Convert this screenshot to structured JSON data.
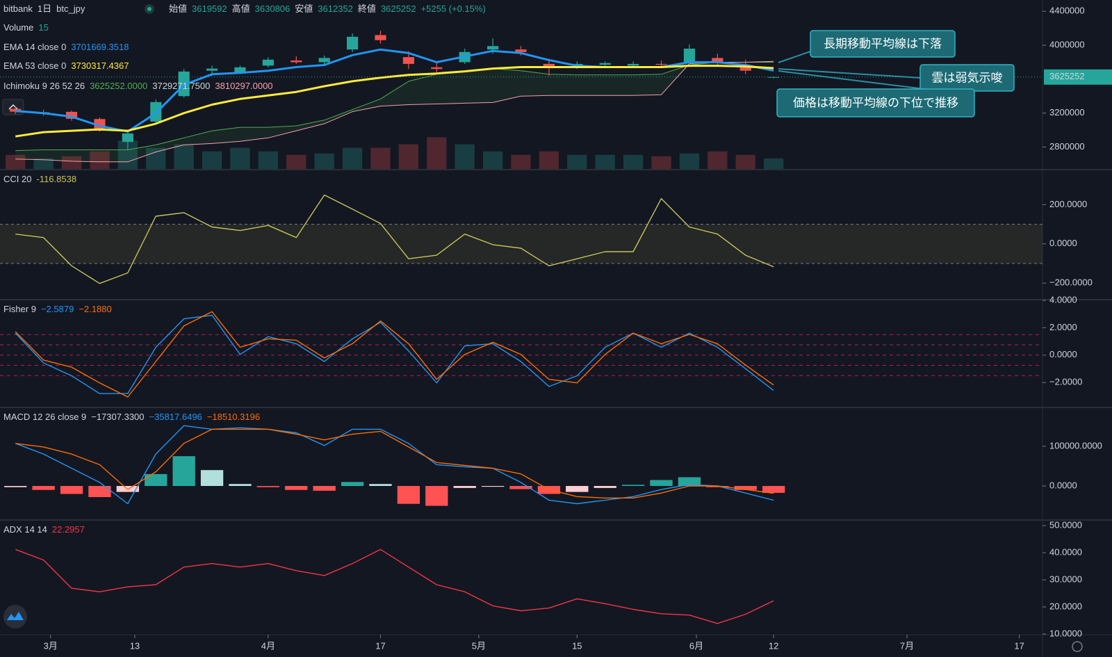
{
  "chart_data": [
    {
      "type": "candlestick",
      "header": {
        "exchange": "bitbank",
        "interval": "1日",
        "symbol": "btc_jpy",
        "ohlc": [
          {
            "label": "始値",
            "value": "3619592"
          },
          {
            "label": "高値",
            "value": "3630806"
          },
          {
            "label": "安値",
            "value": "3612352"
          },
          {
            "label": "終値",
            "value": "3625252"
          }
        ],
        "change": "+5255 (+0.15%)"
      },
      "x": [
        -5,
        -1,
        3,
        7,
        11,
        15,
        19,
        23,
        27,
        31,
        35,
        39,
        43,
        47,
        51,
        55,
        59,
        63,
        67,
        71,
        75,
        79,
        83,
        87,
        91,
        95,
        99,
        103
      ],
      "xlim": [
        -7.2,
        141.3
      ],
      "xticks": [
        {
          "value": 0,
          "label": "3月"
        },
        {
          "value": 12,
          "label": "13"
        },
        {
          "value": 31,
          "label": "4月"
        },
        {
          "value": 47,
          "label": "17"
        },
        {
          "value": 61,
          "label": "5月"
        },
        {
          "value": 75,
          "label": "15"
        },
        {
          "value": 92,
          "label": "6月"
        },
        {
          "value": 103,
          "label": "12"
        },
        {
          "value": 122,
          "label": "7月"
        },
        {
          "value": 138,
          "label": "17"
        }
      ],
      "open": [
        3250000,
        3200000,
        3215000,
        3130000,
        2860000,
        3100000,
        3400000,
        3700000,
        3680000,
        3760000,
        3820000,
        3800000,
        3950000,
        4120000,
        3860000,
        3740000,
        3800000,
        3950000,
        3950000,
        3780000,
        3760000,
        3770000,
        3760000,
        3780000,
        3800000,
        3850000,
        3760000,
        3619592
      ],
      "high": [
        3280000,
        3240000,
        3230000,
        3150000,
        2990000,
        3360000,
        3720000,
        3760000,
        3760000,
        3860000,
        3870000,
        3880000,
        4140000,
        4170000,
        3930000,
        3800000,
        3960000,
        4080000,
        3990000,
        3840000,
        3810000,
        3810000,
        3810000,
        3820000,
        4010000,
        3900000,
        3830000,
        3630806
      ],
      "low": [
        3190000,
        3170000,
        3110000,
        2980000,
        2760000,
        3080000,
        3380000,
        3640000,
        3660000,
        3740000,
        3780000,
        3760000,
        3920000,
        4020000,
        3720000,
        3680000,
        3780000,
        3900000,
        3880000,
        3640000,
        3720000,
        3740000,
        3730000,
        3740000,
        3780000,
        3760000,
        3660000,
        3612352
      ],
      "close": [
        3217000,
        3210000,
        3133000,
        2992000,
        2960000,
        3330000,
        3690000,
        3725000,
        3740000,
        3830000,
        3800000,
        3850000,
        4100000,
        4060000,
        3780000,
        3720000,
        3920000,
        3990000,
        3920000,
        3730000,
        3780000,
        3790000,
        3780000,
        3770000,
        3960000,
        3800000,
        3700000,
        3625252
      ],
      "up_color": "#26a69a",
      "down_color": "#ef5350",
      "volume": {
        "label": "Volume",
        "value_label": "15",
        "values": [
          20,
          15,
          18,
          25,
          40,
          30,
          35,
          25,
          30,
          25,
          20,
          22,
          30,
          30,
          35,
          45,
          35,
          25,
          20,
          25,
          20,
          20,
          20,
          18,
          22,
          25,
          20,
          15
        ],
        "ylim": [
          0,
          240
        ]
      },
      "series": [
        {
          "name": "EMA 14 close 0",
          "value_label": "3701669.3518",
          "color": "#2196f3",
          "values": [
            3225000,
            3200000,
            3158000,
            3050000,
            2983000,
            3200000,
            3533000,
            3658000,
            3675000,
            3700000,
            3742000,
            3767000,
            3883000,
            3950000,
            3908000,
            3800000,
            3867000,
            3933000,
            3908000,
            3825000,
            3758000,
            3742000,
            3742000,
            3742000,
            3800000,
            3800000,
            3767000,
            3701669.3518
          ]
        },
        {
          "name": "EMA 53 close 0",
          "value_label": "3730317.4367",
          "color": "#ffeb3b",
          "values": [
            2925000,
            2975000,
            2992000,
            3008000,
            2992000,
            3075000,
            3200000,
            3300000,
            3367000,
            3408000,
            3450000,
            3517000,
            3575000,
            3617000,
            3650000,
            3667000,
            3692000,
            3725000,
            3742000,
            3742000,
            3742000,
            3742000,
            3742000,
            3742000,
            3758000,
            3758000,
            3750000,
            3730317.4367
          ]
        }
      ],
      "ichimoku": {
        "name": "Ichimoku 9 26 52 26",
        "value_labels": [
          "3625252.0000",
          "3729271.7500",
          "3810297.0000"
        ],
        "label_colors": [
          "#4caf50",
          "#d1d4dc",
          "#f7a1a8"
        ],
        "cloud_color": "rgba(76,175,80,0.10)",
        "span_a": {
          "color": "#4caf50",
          "values": [
            2758000,
            2767000,
            2767000,
            2767000,
            2767000,
            2825000,
            2908000,
            2992000,
            3033000,
            3033000,
            3050000,
            3117000,
            3242000,
            3367000,
            3575000,
            3658000,
            3700000,
            3725000,
            3700000,
            3658000,
            3650000,
            3650000,
            3650000,
            3658000,
            3767000,
            3800000,
            3800000,
            3800000
          ]
        },
        "span_b": {
          "color": "#f7a1a8",
          "values": [
            2658000,
            2650000,
            2633000,
            2625000,
            2625000,
            2742000,
            2825000,
            2842000,
            2867000,
            2908000,
            2992000,
            3075000,
            3217000,
            3283000,
            3300000,
            3308000,
            3317000,
            3325000,
            3400000,
            3408000,
            3408000,
            3408000,
            3408000,
            3417000,
            3783000,
            3800000,
            3800000,
            3810297
          ]
        }
      },
      "ylim": [
        2541667,
        4533333
      ],
      "yticks": [
        2800000,
        3200000,
        4000000,
        4400000
      ],
      "annotations": [
        "長期移動平均線は下落",
        "雲は弱気示唆",
        "価格は移動平均線の下位で推移"
      ]
    },
    {
      "type": "line",
      "name": "CCI 20",
      "series": [
        {
          "value_label": "-116.8538",
          "color": "#c9c35a",
          "values": [
            50,
            32,
            -112,
            -202,
            -148,
            141,
            159,
            86,
            68,
            94,
            32,
            249,
            177,
            104,
            -76,
            -58,
            50,
            -4,
            -22,
            -112,
            -76,
            -40,
            -40,
            231,
            86,
            50,
            -58,
            -116.8538
          ]
        }
      ],
      "band": [
        -100,
        100
      ],
      "band_color": "rgba(120,123,60,0.18)",
      "ylim": [
        -281,
        375
      ],
      "yticks": [
        {
          "value": 200,
          "label": "200.0000"
        },
        {
          "value": 0,
          "label": "0.0000"
        },
        {
          "value": -200,
          "label": "−200.0000"
        }
      ]
    },
    {
      "type": "line",
      "name": "Fisher 9",
      "series": [
        {
          "value_label": "−2.5879",
          "color": "#2196f3",
          "values": [
            1.61,
            -0.57,
            -1.51,
            -2.81,
            -2.81,
            0.57,
            2.65,
            2.91,
            0.05,
            1.35,
            0.83,
            -0.47,
            1.19,
            2.39,
            0.31,
            -2.03,
            0.68,
            0.83,
            -0.47,
            -2.29,
            -1.51,
            0.57,
            1.61,
            0.57,
            1.61,
            0.57,
            -0.99,
            -2.5879
          ]
        },
        {
          "value_label": "−2.1880",
          "color": "#ff6d00",
          "values": [
            1.71,
            -0.36,
            -0.88,
            -2.03,
            -3.06,
            -0.47,
            2.13,
            3.17,
            0.57,
            1.19,
            1.09,
            -0.21,
            0.83,
            2.49,
            0.83,
            -1.77,
            0.05,
            0.94,
            0.05,
            -1.77,
            -2.03,
            0.05,
            1.61,
            0.83,
            1.51,
            0.83,
            -0.73,
            -2.188
          ]
        }
      ],
      "levels": [
        1.5,
        0.75,
        0,
        -0.75,
        -1.5
      ],
      "level_color": "#e91e63",
      "ylim": [
        -3.77,
        4
      ],
      "yticks": [
        {
          "value": 4,
          "label": "4.0000"
        },
        {
          "value": 2,
          "label": "2.0000"
        },
        {
          "value": 0,
          "label": "0.0000"
        },
        {
          "value": -2,
          "label": "−2.0000"
        }
      ]
    },
    {
      "type": "line",
      "name": "MACD 12 26 close 9",
      "histogram": {
        "value_label": "−17307.3300",
        "label_color": "#d1d4dc",
        "colors": [
          "#26a69a",
          "#b2dfdb",
          "#ffcdd2",
          "#ff5252"
        ],
        "values": [
          -3000,
          -10000,
          -20000,
          -28000,
          -15000,
          30000,
          75000,
          40000,
          5000,
          -3000,
          -10000,
          -12000,
          10000,
          5000,
          -45000,
          -50000,
          -5000,
          -2000,
          -8000,
          -20000,
          -15000,
          -5000,
          3000,
          15000,
          22000,
          -3000,
          -10000,
          -17307.33
        ]
      },
      "series": [
        {
          "value_label": "−35817.6496",
          "color": "#2196f3",
          "values": [
            107160,
            80370,
            44650,
            8930,
            -44650,
            80370,
            151810,
            142880,
            146450,
            142880,
            133950,
            101800,
            142880,
            142880,
            107160,
            53580,
            48220,
            44650,
            8930,
            -35720,
            -44650,
            -35720,
            -26790,
            -8930,
            3570,
            0,
            -17860,
            -35817.6496
          ]
        },
        {
          "value_label": "−18510.3196",
          "color": "#ff6d00",
          "values": [
            107160,
            98230,
            80370,
            53580,
            -8930,
            35720,
            107160,
            142880,
            142880,
            142880,
            130380,
            116090,
            130380,
            137520,
            98230,
            58940,
            51790,
            44650,
            30360,
            -8930,
            -26790,
            -30360,
            -30360,
            -17860,
            0,
            0,
            -8930,
            -18510.3196
          ]
        }
      ],
      "ylim": [
        -84000,
        196000
      ],
      "yticks": [
        {
          "value": 100000,
          "label": "100000.0000"
        },
        {
          "value": 0,
          "label": "0.0000"
        }
      ]
    },
    {
      "type": "line",
      "name": "ADX 14 14",
      "series": [
        {
          "value_label": "22.2957",
          "color": "#f23645",
          "values": [
            41.2,
            37.3,
            26.9,
            25.6,
            27.4,
            28.2,
            34.7,
            36.0,
            34.7,
            36.0,
            33.4,
            31.6,
            36.0,
            41.2,
            34.7,
            28.2,
            25.6,
            20.4,
            18.6,
            19.6,
            23.0,
            21.2,
            19.1,
            17.5,
            17.0,
            13.9,
            17.3,
            22.2957
          ]
        }
      ],
      "ylim": [
        10,
        51.8
      ],
      "yticks": [
        {
          "value": 50,
          "label": "50.0000"
        },
        {
          "value": 40,
          "label": "40.0000"
        },
        {
          "value": 30,
          "label": "30.0000"
        },
        {
          "value": 20,
          "label": "20.0000"
        },
        {
          "value": 10,
          "label": "10.0000"
        }
      ]
    }
  ]
}
